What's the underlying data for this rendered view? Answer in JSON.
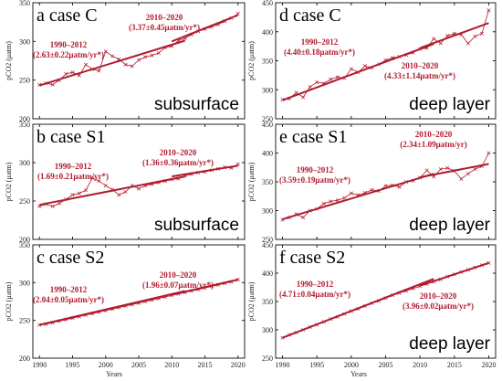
{
  "colors": {
    "series": "#b01c2e",
    "axis": "#222222"
  },
  "x_axis_label": "Years",
  "chart_data": [
    {
      "type": "line",
      "panel_label": "a case C",
      "layer": "subsurface",
      "ylabel": "pCO2 (μatm)",
      "xlim": [
        1989,
        2021
      ],
      "ylim": [
        200,
        350
      ],
      "yticks": [
        200,
        250,
        300,
        350
      ],
      "xticks": [
        1990,
        1995,
        2000,
        2005,
        2010,
        2015,
        2020
      ],
      "x": [
        1990,
        1991,
        1992,
        1993,
        1994,
        1995,
        1996,
        1997,
        1998,
        1999,
        2000,
        2001,
        2002,
        2003,
        2004,
        2005,
        2006,
        2007,
        2008,
        2009,
        2010,
        2011,
        2012,
        2013,
        2014,
        2015,
        2016,
        2017,
        2018,
        2019,
        2020
      ],
      "values": [
        244,
        246,
        244,
        250,
        258,
        260,
        256,
        270,
        264,
        262,
        287,
        281,
        277,
        270,
        268,
        276,
        280,
        282,
        285,
        292,
        294,
        301,
        304,
        309,
        313,
        316,
        319,
        322,
        326,
        330,
        336
      ],
      "trends": [
        {
          "label": "1990–2012",
          "rate": "(2.63±0.22μatm/yr*)",
          "x": [
            1990,
            2012
          ],
          "y": [
            243,
            301
          ]
        },
        {
          "label": "2010–2020",
          "rate": "(3.37±0.45μatm/yr*)",
          "x": [
            2010,
            2020
          ],
          "y": [
            300,
            334
          ]
        }
      ]
    },
    {
      "type": "line",
      "panel_label": "d case C",
      "layer": "deep layer",
      "ylabel": "pCO2 (μatm)",
      "xlim": [
        1989,
        2021
      ],
      "ylim": [
        250,
        450
      ],
      "yticks": [
        250,
        300,
        350,
        400,
        450
      ],
      "xticks": [
        1990,
        1995,
        2000,
        2005,
        2010,
        2015,
        2020
      ],
      "x": [
        1990,
        1991,
        1992,
        1993,
        1994,
        1995,
        1996,
        1997,
        1998,
        1999,
        2000,
        2001,
        2002,
        2003,
        2004,
        2005,
        2006,
        2007,
        2008,
        2009,
        2010,
        2011,
        2012,
        2013,
        2014,
        2015,
        2016,
        2017,
        2018,
        2019,
        2020
      ],
      "values": [
        283,
        285,
        295,
        287,
        305,
        313,
        311,
        318,
        322,
        320,
        336,
        330,
        341,
        338,
        344,
        351,
        355,
        357,
        360,
        364,
        370,
        372,
        388,
        380,
        393,
        397,
        395,
        380,
        392,
        397,
        437
      ],
      "trends": [
        {
          "label": "1990–2012",
          "rate": "(4.40±0.18μatm/yr*)",
          "x": [
            1990,
            2012
          ],
          "y": [
            282,
            379
          ]
        },
        {
          "label": "2010–2020",
          "rate": "(4.33±1.14μatm/yr*)",
          "x": [
            2010,
            2020
          ],
          "y": [
            372,
            415
          ]
        }
      ]
    },
    {
      "type": "line",
      "panel_label": "b case S1",
      "layer": "subsurface",
      "ylabel": "pCO2 (μatm)",
      "xlim": [
        1989,
        2021
      ],
      "ylim": [
        200,
        350
      ],
      "yticks": [
        200,
        250,
        300,
        350
      ],
      "xticks": [
        1990,
        1995,
        2000,
        2005,
        2010,
        2015,
        2020
      ],
      "x": [
        1990,
        1991,
        1992,
        1993,
        1994,
        1995,
        1996,
        1997,
        1998,
        1999,
        2000,
        2001,
        2002,
        2003,
        2004,
        2005,
        2006,
        2007,
        2008,
        2009,
        2010,
        2011,
        2012,
        2013,
        2014,
        2015,
        2016,
        2017,
        2018,
        2019,
        2020
      ],
      "values": [
        243,
        246,
        243,
        247,
        252,
        258,
        260,
        264,
        280,
        276,
        270,
        265,
        258,
        262,
        270,
        266,
        270,
        272,
        274,
        276,
        278,
        279,
        283,
        285,
        287,
        288,
        290,
        292,
        294,
        293,
        298
      ],
      "trends": [
        {
          "label": "1990–2012",
          "rate": "(1.69±0.21μatm/yr*)",
          "x": [
            1990,
            2012
          ],
          "y": [
            245,
            282
          ]
        },
        {
          "label": "2010–2020",
          "rate": "(1.36±0.36μatm/yr*)",
          "x": [
            2010,
            2020
          ],
          "y": [
            282,
            296
          ]
        }
      ]
    },
    {
      "type": "line",
      "panel_label": "e case S1",
      "layer": "deep layer",
      "ylabel": "pCO2 (μatm)",
      "xlim": [
        1989,
        2021
      ],
      "ylim": [
        250,
        450
      ],
      "yticks": [
        250,
        300,
        350,
        400,
        450
      ],
      "xticks": [
        1990,
        1995,
        2000,
        2005,
        2010,
        2015,
        2020
      ],
      "x": [
        1990,
        1991,
        1992,
        1993,
        1994,
        1995,
        1996,
        1997,
        1998,
        1999,
        2000,
        2001,
        2002,
        2003,
        2004,
        2005,
        2006,
        2007,
        2008,
        2009,
        2010,
        2011,
        2012,
        2013,
        2014,
        2015,
        2016,
        2017,
        2018,
        2019,
        2020
      ],
      "values": [
        284,
        288,
        294,
        288,
        300,
        303,
        312,
        316,
        318,
        322,
        330,
        327,
        331,
        336,
        334,
        343,
        344,
        341,
        350,
        352,
        357,
        370,
        359,
        372,
        374,
        369,
        355,
        364,
        372,
        377,
        400
      ],
      "trends": [
        {
          "label": "1990–2012",
          "rate": "(3.59±0.19μatm/yr*)",
          "x": [
            1990,
            2012
          ],
          "y": [
            285,
            364
          ]
        },
        {
          "label": "2010–2020",
          "rate": "(2.34±1.09μatm/yr)",
          "x": [
            2010,
            2020
          ],
          "y": [
            358,
            381
          ]
        }
      ]
    },
    {
      "type": "line",
      "panel_label": "c case S2",
      "layer": "",
      "ylabel": "pCO2 (μatm)",
      "xlim": [
        1989,
        2021
      ],
      "ylim": [
        200,
        350
      ],
      "yticks": [
        200,
        250,
        300,
        350
      ],
      "xticks": [
        1990,
        1995,
        2000,
        2005,
        2010,
        2015,
        2020
      ],
      "x": [
        1990,
        1991,
        1992,
        1993,
        1994,
        1995,
        1996,
        1997,
        1998,
        1999,
        2000,
        2001,
        2002,
        2003,
        2004,
        2005,
        2006,
        2007,
        2008,
        2009,
        2010,
        2011,
        2012,
        2013,
        2014,
        2015,
        2016,
        2017,
        2018,
        2019,
        2020
      ],
      "values": [
        244,
        245,
        247,
        249,
        251,
        253,
        255,
        257,
        259,
        261,
        263,
        265,
        267,
        269,
        271,
        273,
        275,
        277,
        279,
        281,
        283,
        285,
        287,
        289,
        291,
        293,
        295,
        297,
        299,
        301,
        304
      ],
      "trends": [
        {
          "label": "1990–2012",
          "rate": "(2.04±0.05μatm/yr*)",
          "x": [
            1990,
            2012
          ],
          "y": [
            244,
            289
          ]
        },
        {
          "label": "2010–2020",
          "rate": "(1.96±0.07μatm/yr*)",
          "x": [
            2010,
            2020
          ],
          "y": [
            284,
            304
          ]
        }
      ]
    },
    {
      "type": "line",
      "panel_label": "f case S2",
      "layer": "deep layer",
      "ylabel": "pCO2 (μatm)",
      "xlim": [
        1989,
        2021
      ],
      "ylim": [
        250,
        450
      ],
      "yticks": [
        250,
        300,
        350,
        400,
        450
      ],
      "xticks": [
        1990,
        1995,
        2000,
        2005,
        2010,
        2015,
        2020
      ],
      "x": [
        1990,
        1991,
        1992,
        1993,
        1994,
        1995,
        1996,
        1997,
        1998,
        1999,
        2000,
        2001,
        2002,
        2003,
        2004,
        2005,
        2006,
        2007,
        2008,
        2009,
        2010,
        2011,
        2012,
        2013,
        2014,
        2015,
        2016,
        2017,
        2018,
        2019,
        2020
      ],
      "values": [
        286,
        291,
        295,
        300,
        305,
        309,
        314,
        319,
        323,
        328,
        333,
        337,
        342,
        347,
        351,
        356,
        361,
        365,
        369,
        373,
        377,
        381,
        385,
        389,
        394,
        398,
        402,
        406,
        410,
        414,
        418
      ],
      "trends": [
        {
          "label": "1990–2012",
          "rate": "(4.71±0.04μatm/yr*)",
          "x": [
            1990,
            2012
          ],
          "y": [
            286,
            390
          ]
        },
        {
          "label": "2010–2020",
          "rate": "(3.96±0.02μatm/yr*)",
          "x": [
            2010,
            2020
          ],
          "y": [
            378,
            418
          ]
        }
      ]
    }
  ]
}
